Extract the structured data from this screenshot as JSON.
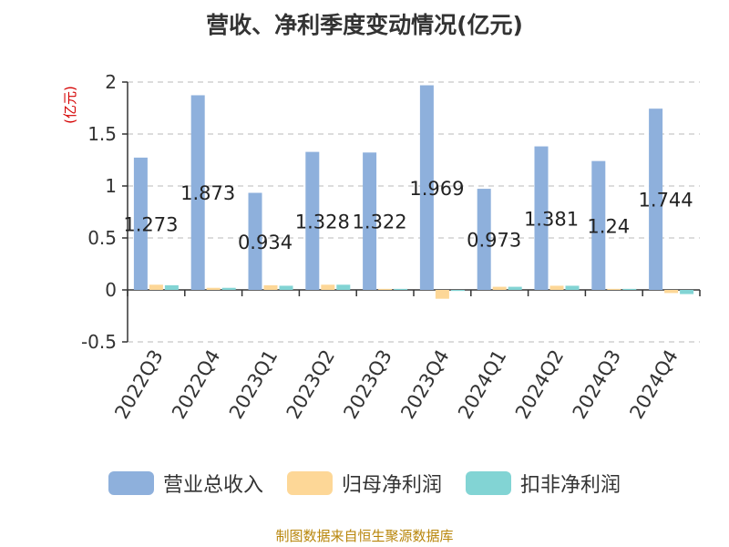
{
  "title": "营收、净利季度变动情况(亿元)",
  "footer": "制图数据来自恒生聚源数据库",
  "chart_data": {
    "type": "bar",
    "title": "营收、净利季度变动情况(亿元)",
    "ylabel": "(亿元)",
    "xlabel": "",
    "ylim": [
      -0.5,
      2
    ],
    "yticks": [
      -0.5,
      0,
      0.5,
      1,
      1.5,
      2
    ],
    "ytick_labels": [
      "-0.5",
      "0",
      "0.5",
      "1",
      "1.5",
      "2"
    ],
    "grid": "horizontal dashed",
    "legend_position": "bottom",
    "categories": [
      "2022Q3",
      "2022Q4",
      "2023Q1",
      "2023Q2",
      "2023Q3",
      "2023Q4",
      "2024Q1",
      "2024Q2",
      "2024Q3",
      "2024Q4"
    ],
    "series": [
      {
        "name": "营业总收入",
        "color": "#8eb0dc",
        "values": [
          1.273,
          1.873,
          0.934,
          1.328,
          1.322,
          1.969,
          0.973,
          1.381,
          1.24,
          1.744
        ],
        "labels": [
          "1.273",
          "1.873",
          "0.934",
          "1.328",
          "1.322",
          "1.969",
          "0.973",
          "1.381",
          "1.24",
          "1.744"
        ]
      },
      {
        "name": "归母净利润",
        "color": "#fdd797",
        "values": [
          0.05,
          0.02,
          0.045,
          0.05,
          0.01,
          -0.085,
          0.03,
          0.04,
          0.01,
          -0.03
        ]
      },
      {
        "name": "扣非净利润",
        "color": "#82d4d4",
        "values": [
          0.045,
          0.02,
          0.04,
          0.05,
          0.01,
          -0.01,
          0.03,
          0.04,
          0.01,
          -0.04
        ]
      }
    ]
  }
}
